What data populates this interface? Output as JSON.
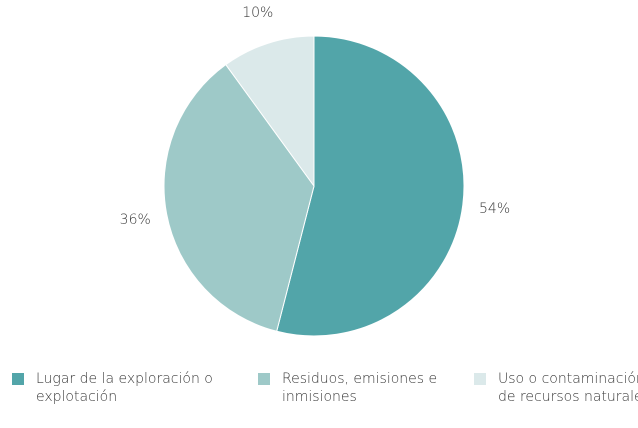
{
  "chart_data": {
    "type": "pie",
    "categories": [
      "Lugar de la exploración o explotación",
      "Residuos, emisiones e inmisiones",
      "Uso o contaminación de recursos naturales"
    ],
    "values": [
      54,
      36,
      10
    ],
    "value_labels": [
      "54%",
      "36%",
      "10%"
    ],
    "colors": [
      "#52a5a9",
      "#9ec9c8",
      "#dbe9ea"
    ],
    "legend": "bottom"
  }
}
